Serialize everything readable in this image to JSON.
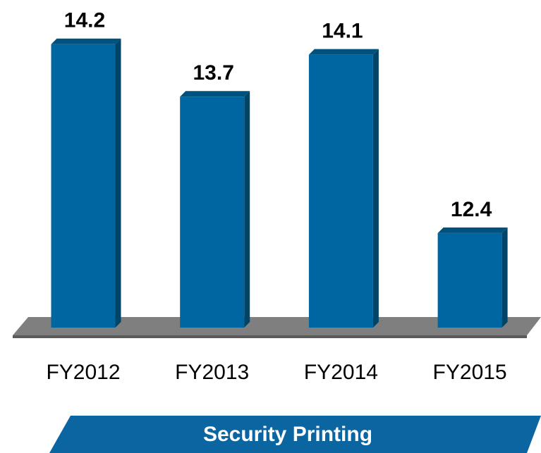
{
  "chart_data": {
    "type": "bar3d",
    "title": "Security Printing",
    "categories": [
      "FY2012",
      "FY2013",
      "FY2014",
      "FY2015"
    ],
    "values": [
      14.2,
      13.7,
      14.1,
      12.4
    ],
    "color": "#0066a1",
    "ylim": [
      11.5,
      14.5
    ]
  }
}
